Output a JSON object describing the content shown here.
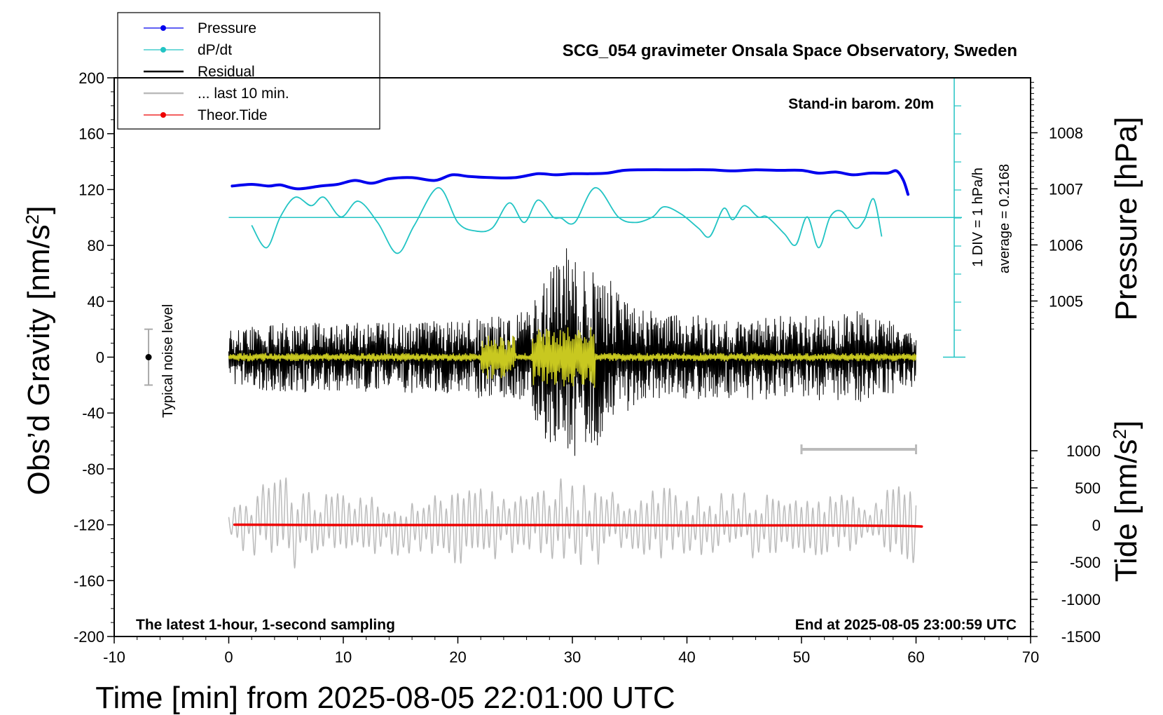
{
  "chart_data": {
    "type": "line",
    "title": "SCG_054 gravimeter Onsala Space Observatory, Sweden",
    "xlabel": "Time [min] from 2025-08-05 22:01:00 UTC",
    "ylabel_left": "Obs’d Gravity [nm/s²]",
    "ylabel_right_top": "Pressure [hPa]",
    "ylabel_right_bottom": "Tide [nm/s²]",
    "xlim": [
      -10,
      70
    ],
    "ylim": [
      -200,
      200
    ],
    "x_ticks": [
      -10,
      0,
      10,
      20,
      30,
      40,
      50,
      60,
      70
    ],
    "x_tick_labels": [
      "-10",
      "0",
      "10",
      "20",
      "30",
      "40",
      "50",
      "60",
      "70"
    ],
    "y_ticks": [
      -200,
      -160,
      -120,
      -80,
      -40,
      0,
      40,
      80,
      120,
      160,
      200
    ],
    "y_tick_labels": [
      "-200",
      "-160",
      "-120",
      "-80",
      "-40",
      "0",
      "40",
      "80",
      "120",
      "160",
      "200"
    ],
    "pressure_ticks": [
      1005,
      1006,
      1007,
      1008
    ],
    "pressure_tick_labels": [
      "1005",
      "1006",
      "1007",
      "1008"
    ],
    "tide_ticks": [
      -1500,
      -1000,
      -500,
      0,
      500,
      1000
    ],
    "tide_tick_labels": [
      "-1500",
      "-1000",
      "-500",
      "0",
      "500",
      "1000"
    ],
    "grid": false,
    "legend_position": "top-left",
    "legend": [
      {
        "name": "Pressure",
        "color": "#0000ee",
        "marker": "dot"
      },
      {
        "name": "dP/dt",
        "color": "#22c4c4",
        "marker": "dot"
      },
      {
        "name": "Residual",
        "color": "#000000",
        "marker": "none"
      },
      {
        "name": "... last 10 min.",
        "color": "#bbbbbb",
        "marker": "none"
      },
      {
        "name": "Theor.Tide",
        "color": "#ee0000",
        "marker": "dot"
      }
    ],
    "annotations": {
      "stand_in": "Stand-in barom. 20m",
      "div": "1 DIV = 1 hPa/h",
      "average": "average = 0.2168",
      "noise": "Typical noise level",
      "bottom_left": "The latest 1-hour, 1-second sampling",
      "bottom_right": "End at 2025-08-05 23:00:59 UTC"
    },
    "series": [
      {
        "name": "Pressure",
        "color": "#0000ee",
        "x": [
          0.3,
          2,
          3.5,
          4.5,
          6,
          8,
          9.5,
          11,
          12.5,
          14,
          16,
          18,
          19.5,
          21,
          23,
          25,
          27,
          28.5,
          30,
          31.5,
          33,
          34.5,
          36,
          38,
          40,
          42,
          44,
          46,
          48,
          50,
          51.5,
          53,
          54.5,
          56,
          57.5,
          58.3,
          58.9,
          59.3
        ],
        "values": [
          1007.05,
          1007.08,
          1007.05,
          1007.07,
          1007.0,
          1007.05,
          1007.08,
          1007.15,
          1007.1,
          1007.18,
          1007.2,
          1007.15,
          1007.25,
          1007.22,
          1007.2,
          1007.2,
          1007.27,
          1007.25,
          1007.27,
          1007.27,
          1007.28,
          1007.33,
          1007.34,
          1007.34,
          1007.34,
          1007.34,
          1007.32,
          1007.34,
          1007.33,
          1007.33,
          1007.28,
          1007.3,
          1007.25,
          1007.28,
          1007.28,
          1007.32,
          1007.15,
          1006.9
        ]
      },
      {
        "name": "dP/dt",
        "color": "#22c4c4",
        "x": [
          2.0,
          3.3,
          4.5,
          5.8,
          7.2,
          8.3,
          9.8,
          11.3,
          13.0,
          14.7,
          16.2,
          18.3,
          20.0,
          21.5,
          23.0,
          24.5,
          25.8,
          27.0,
          28.3,
          29.0,
          30.2,
          32.0,
          34.0,
          35.5,
          37.0,
          38.0,
          39.5,
          41.0,
          42.0,
          43.2,
          44.0,
          45.0,
          46.2,
          47.0,
          48.5,
          49.5,
          50.5,
          51.5,
          52.5,
          53.5,
          54.7,
          55.5,
          56.3,
          57.0
        ],
        "values": [
          1006.35,
          1005.95,
          1006.5,
          1006.85,
          1006.7,
          1006.85,
          1006.5,
          1006.78,
          1006.4,
          1005.85,
          1006.35,
          1007.02,
          1006.4,
          1006.25,
          1006.3,
          1006.75,
          1006.4,
          1006.8,
          1006.5,
          1006.48,
          1006.4,
          1007.02,
          1006.5,
          1006.4,
          1006.5,
          1006.68,
          1006.55,
          1006.3,
          1006.15,
          1006.65,
          1006.45,
          1006.7,
          1006.5,
          1006.5,
          1006.2,
          1006.0,
          1006.5,
          1005.95,
          1006.5,
          1006.6,
          1006.3,
          1006.45,
          1006.82,
          1006.15
        ]
      },
      {
        "name": "Theor.Tide",
        "color": "#ee0000",
        "x": [
          0.5,
          10,
          20,
          30,
          40,
          50,
          58,
          60.5
        ],
        "values": [
          5,
          0,
          0,
          0,
          -5,
          -5,
          -10,
          -20
        ]
      }
    ],
    "residual_envelope": {
      "name": "Residual",
      "color": "#000000",
      "x": [
        0,
        5,
        10,
        15,
        20,
        24,
        26,
        27.5,
        29,
        29.5,
        30.5,
        32,
        33.5,
        35,
        37,
        40,
        45,
        50,
        55,
        57,
        60
      ],
      "amplitude": [
        20,
        24,
        24,
        26,
        26,
        30,
        35,
        58,
        70,
        98,
        60,
        65,
        52,
        38,
        32,
        30,
        30,
        28,
        32,
        30,
        18
      ]
    },
    "last_10_min": {
      "name": "... last 10 min.",
      "color": "#bbbbbb",
      "x_range": [
        0,
        60
      ],
      "center": -120,
      "amplitude": [
        22,
        35,
        25,
        28,
        24,
        22,
        30,
        26,
        22,
        34,
        32,
        24,
        28,
        22,
        25,
        26,
        24,
        22,
        20,
        28
      ]
    }
  }
}
